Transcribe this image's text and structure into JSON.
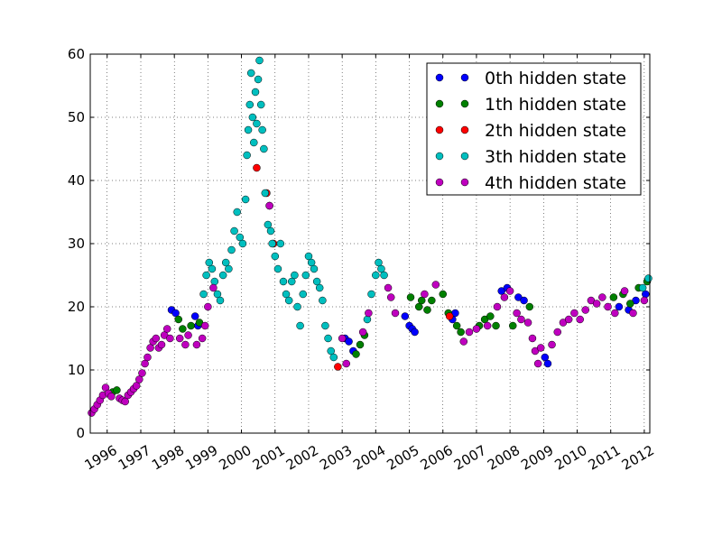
{
  "chart_data": {
    "type": "scatter",
    "title": "",
    "xlabel": "",
    "ylabel": "",
    "xlim": [
      "1995-07-01",
      "2012-03-01"
    ],
    "ylim": [
      0,
      60
    ],
    "yticks": [
      0,
      10,
      20,
      30,
      40,
      50,
      60
    ],
    "xtick_labels": [
      "1996",
      "1997",
      "1998",
      "1999",
      "2000",
      "2001",
      "2002",
      "2003",
      "2004",
      "2005",
      "2006",
      "2007",
      "2008",
      "2009",
      "2010",
      "2011",
      "2012"
    ],
    "grid": true,
    "grid_style": "dotted",
    "legend_position": "top-right",
    "series": [
      {
        "name": "0th hidden state",
        "color": "#0000ff",
        "points": [
          [
            "1997-12-01",
            19.5
          ],
          [
            "1998-01-15",
            19.0
          ],
          [
            "1998-08-15",
            18.5
          ],
          [
            "1998-09-15",
            17.0
          ],
          [
            "2003-02-01",
            15.0
          ],
          [
            "2003-03-15",
            14.5
          ],
          [
            "2003-05-01",
            13.0
          ],
          [
            "2004-11-15",
            18.5
          ],
          [
            "2005-01-01",
            17.0
          ],
          [
            "2005-02-01",
            16.5
          ],
          [
            "2005-03-01",
            16.0
          ],
          [
            "2006-04-15",
            18.0
          ],
          [
            "2006-05-15",
            19.0
          ],
          [
            "2007-10-01",
            22.5
          ],
          [
            "2007-12-01",
            23.0
          ],
          [
            "2008-04-01",
            21.5
          ],
          [
            "2008-06-01",
            21.0
          ],
          [
            "2009-01-15",
            12.0
          ],
          [
            "2009-02-15",
            11.0
          ],
          [
            "2011-04-01",
            20.0
          ],
          [
            "2011-07-15",
            19.5
          ],
          [
            "2011-10-01",
            21.0
          ],
          [
            "2012-01-15",
            22.0
          ]
        ]
      },
      {
        "name": "1th hidden state",
        "color": "#008000",
        "points": [
          [
            "1996-03-01",
            6.5
          ],
          [
            "1996-04-15",
            6.8
          ],
          [
            "1998-02-15",
            18.0
          ],
          [
            "1998-04-01",
            16.5
          ],
          [
            "1998-07-01",
            17.0
          ],
          [
            "1998-10-01",
            17.5
          ],
          [
            "2003-06-01",
            12.5
          ],
          [
            "2003-07-15",
            14.0
          ],
          [
            "2003-09-01",
            15.5
          ],
          [
            "2005-01-15",
            21.5
          ],
          [
            "2005-04-15",
            20.0
          ],
          [
            "2005-05-15",
            21.0
          ],
          [
            "2005-07-15",
            19.5
          ],
          [
            "2005-09-01",
            21.0
          ],
          [
            "2006-01-01",
            22.0
          ],
          [
            "2006-03-01",
            19.0
          ],
          [
            "2006-06-01",
            17.0
          ],
          [
            "2006-07-15",
            16.0
          ],
          [
            "2007-02-01",
            17.0
          ],
          [
            "2007-04-01",
            18.0
          ],
          [
            "2007-06-01",
            18.5
          ],
          [
            "2007-08-01",
            17.0
          ],
          [
            "2008-02-01",
            17.0
          ],
          [
            "2008-08-01",
            20.0
          ],
          [
            "2011-02-01",
            21.5
          ],
          [
            "2011-05-15",
            22.0
          ],
          [
            "2011-08-01",
            20.5
          ],
          [
            "2011-11-01",
            23.0
          ],
          [
            "2012-02-01",
            24.0
          ]
        ]
      },
      {
        "name": "2th hidden state",
        "color": "#ff0000",
        "points": [
          [
            "2000-06-15",
            42.0
          ],
          [
            "2000-10-01",
            38.0
          ],
          [
            "2000-11-01",
            36.0
          ],
          [
            "2000-12-15",
            30.0
          ],
          [
            "2002-11-15",
            10.5
          ],
          [
            "2006-03-15",
            18.5
          ]
        ]
      },
      {
        "name": "3th hidden state",
        "color": "#00bfbf",
        "points": [
          [
            "1998-11-15",
            22.0
          ],
          [
            "1998-12-15",
            25.0
          ],
          [
            "1999-01-15",
            27.0
          ],
          [
            "1999-02-15",
            26.0
          ],
          [
            "1999-03-15",
            24.0
          ],
          [
            "1999-04-15",
            22.0
          ],
          [
            "1999-05-15",
            21.0
          ],
          [
            "1999-06-15",
            25.0
          ],
          [
            "1999-07-15",
            27.0
          ],
          [
            "1999-08-15",
            26.0
          ],
          [
            "1999-09-15",
            29.0
          ],
          [
            "1999-10-15",
            32.0
          ],
          [
            "1999-11-15",
            35.0
          ],
          [
            "1999-12-15",
            31.0
          ],
          [
            "2000-01-15",
            30.0
          ],
          [
            "2000-02-15",
            37.0
          ],
          [
            "2000-03-01",
            44.0
          ],
          [
            "2000-03-15",
            48.0
          ],
          [
            "2000-04-01",
            52.0
          ],
          [
            "2000-04-15",
            57.0
          ],
          [
            "2000-05-01",
            50.0
          ],
          [
            "2000-05-15",
            46.0
          ],
          [
            "2000-06-01",
            54.0
          ],
          [
            "2000-06-15",
            49.0
          ],
          [
            "2000-07-01",
            56.0
          ],
          [
            "2000-07-15",
            59.0
          ],
          [
            "2000-08-01",
            52.0
          ],
          [
            "2000-08-15",
            48.0
          ],
          [
            "2000-09-01",
            45.0
          ],
          [
            "2000-09-15",
            38.0
          ],
          [
            "2000-10-15",
            33.0
          ],
          [
            "2000-11-15",
            32.0
          ],
          [
            "2000-12-01",
            30.0
          ],
          [
            "2001-01-01",
            28.0
          ],
          [
            "2001-02-01",
            26.0
          ],
          [
            "2001-03-01",
            30.0
          ],
          [
            "2001-04-01",
            24.0
          ],
          [
            "2001-05-01",
            22.0
          ],
          [
            "2001-06-01",
            21.0
          ],
          [
            "2001-07-01",
            24.0
          ],
          [
            "2001-08-01",
            25.0
          ],
          [
            "2001-09-01",
            20.0
          ],
          [
            "2001-10-01",
            17.0
          ],
          [
            "2001-11-01",
            22.0
          ],
          [
            "2001-12-01",
            25.0
          ],
          [
            "2002-01-01",
            28.0
          ],
          [
            "2002-02-01",
            27.0
          ],
          [
            "2002-03-01",
            26.0
          ],
          [
            "2002-04-01",
            24.0
          ],
          [
            "2002-05-01",
            23.0
          ],
          [
            "2002-06-01",
            21.0
          ],
          [
            "2002-07-01",
            17.0
          ],
          [
            "2002-08-01",
            15.0
          ],
          [
            "2002-09-01",
            13.0
          ],
          [
            "2002-10-01",
            12.0
          ],
          [
            "2003-10-01",
            18.0
          ],
          [
            "2003-11-15",
            22.0
          ],
          [
            "2004-01-01",
            25.0
          ],
          [
            "2004-02-01",
            27.0
          ],
          [
            "2004-03-01",
            26.0
          ],
          [
            "2004-04-01",
            25.0
          ],
          [
            "2011-12-15",
            23.0
          ],
          [
            "2012-02-15",
            24.5
          ]
        ]
      },
      {
        "name": "4th hidden state",
        "color": "#bf00bf",
        "points": [
          [
            "1995-07-15",
            3.2
          ],
          [
            "1995-08-15",
            3.8
          ],
          [
            "1995-09-15",
            4.5
          ],
          [
            "1995-10-15",
            5.2
          ],
          [
            "1995-11-15",
            6.0
          ],
          [
            "1995-12-15",
            7.2
          ],
          [
            "1996-01-15",
            6.3
          ],
          [
            "1996-02-15",
            5.8
          ],
          [
            "1996-05-15",
            5.5
          ],
          [
            "1996-06-15",
            5.2
          ],
          [
            "1996-07-15",
            5.0
          ],
          [
            "1996-08-15",
            6.0
          ],
          [
            "1996-09-15",
            6.5
          ],
          [
            "1996-10-15",
            7.0
          ],
          [
            "1996-11-15",
            7.5
          ],
          [
            "1996-12-15",
            8.5
          ],
          [
            "1997-01-15",
            9.5
          ],
          [
            "1997-02-15",
            11.0
          ],
          [
            "1997-03-15",
            12.0
          ],
          [
            "1997-04-15",
            13.5
          ],
          [
            "1997-05-15",
            14.5
          ],
          [
            "1997-06-15",
            15.0
          ],
          [
            "1997-07-15",
            13.5
          ],
          [
            "1997-08-15",
            14.0
          ],
          [
            "1997-09-15",
            15.5
          ],
          [
            "1997-10-15",
            16.5
          ],
          [
            "1997-11-15",
            15.0
          ],
          [
            "1998-03-01",
            15.0
          ],
          [
            "1998-05-01",
            14.0
          ],
          [
            "1998-06-01",
            15.5
          ],
          [
            "1998-09-01",
            14.0
          ],
          [
            "1998-11-01",
            15.0
          ],
          [
            "1998-12-01",
            17.0
          ],
          [
            "1999-01-01",
            20.0
          ],
          [
            "1999-03-01",
            23.0
          ],
          [
            "2000-11-01",
            36.0
          ],
          [
            "2003-01-01",
            15.0
          ],
          [
            "2003-02-15",
            11.0
          ],
          [
            "2003-08-15",
            16.0
          ],
          [
            "2003-10-15",
            19.0
          ],
          [
            "2004-05-15",
            23.0
          ],
          [
            "2004-06-15",
            21.5
          ],
          [
            "2004-08-01",
            19.0
          ],
          [
            "2005-06-15",
            22.0
          ],
          [
            "2005-10-15",
            23.5
          ],
          [
            "2006-08-15",
            14.5
          ],
          [
            "2006-10-15",
            16.0
          ],
          [
            "2007-01-01",
            16.5
          ],
          [
            "2007-05-01",
            17.0
          ],
          [
            "2007-08-15",
            20.0
          ],
          [
            "2007-11-01",
            21.5
          ],
          [
            "2008-01-01",
            22.5
          ],
          [
            "2008-03-15",
            19.0
          ],
          [
            "2008-05-01",
            18.0
          ],
          [
            "2008-07-15",
            17.5
          ],
          [
            "2008-09-01",
            15.0
          ],
          [
            "2008-10-01",
            13.0
          ],
          [
            "2008-11-01",
            11.0
          ],
          [
            "2008-12-01",
            13.5
          ],
          [
            "2009-04-01",
            14.0
          ],
          [
            "2009-06-01",
            16.0
          ],
          [
            "2009-08-01",
            17.5
          ],
          [
            "2009-10-01",
            18.0
          ],
          [
            "2009-12-01",
            19.0
          ],
          [
            "2010-02-01",
            18.0
          ],
          [
            "2010-04-01",
            19.5
          ],
          [
            "2010-06-01",
            21.0
          ],
          [
            "2010-08-01",
            20.5
          ],
          [
            "2010-10-01",
            21.5
          ],
          [
            "2010-12-01",
            20.0
          ],
          [
            "2011-02-15",
            19.0
          ],
          [
            "2011-06-01",
            22.5
          ],
          [
            "2011-09-01",
            19.0
          ],
          [
            "2012-01-01",
            21.0
          ]
        ]
      }
    ]
  }
}
